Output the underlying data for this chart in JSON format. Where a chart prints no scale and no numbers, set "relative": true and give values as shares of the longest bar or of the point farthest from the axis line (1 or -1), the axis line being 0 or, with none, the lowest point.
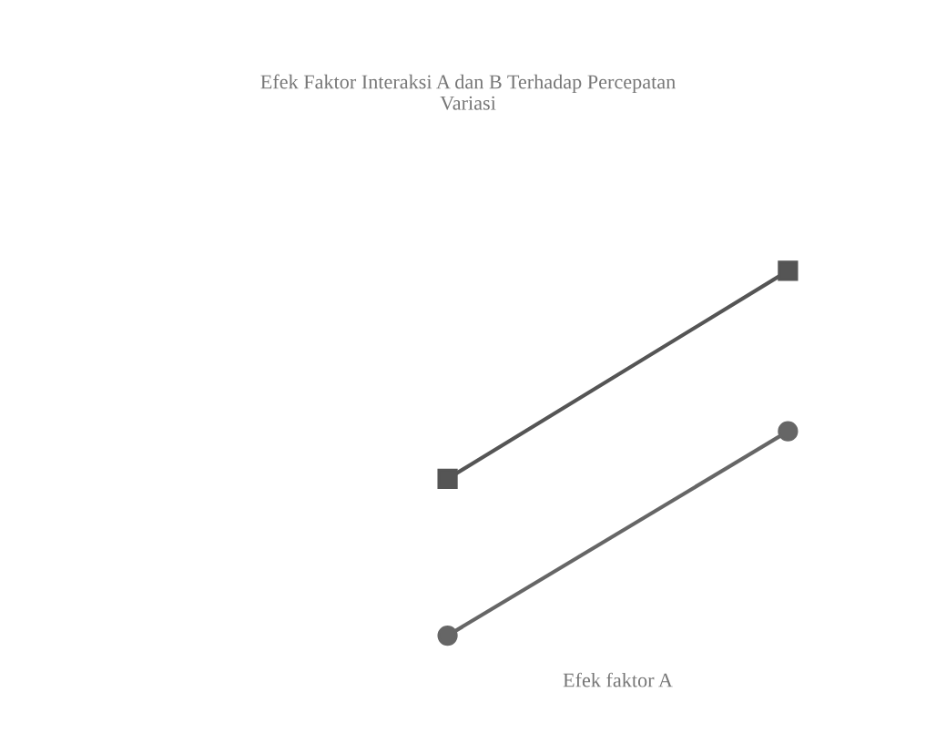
{
  "chart_data": {
    "type": "line",
    "title": "Efek Faktor Interaksi A dan B Terhadap Percepatan\nVariasi",
    "xlabel": "Efek faktor A",
    "relative": true,
    "categories": [
      null,
      null
    ],
    "series": [
      {
        "color": "#555555",
        "marker": "square",
        "values": [
          0.43,
          1.0
        ]
      },
      {
        "color": "#666666",
        "marker": "circle",
        "values": [
          0.0,
          0.56
        ]
      }
    ],
    "grid": false,
    "legend": false
  }
}
